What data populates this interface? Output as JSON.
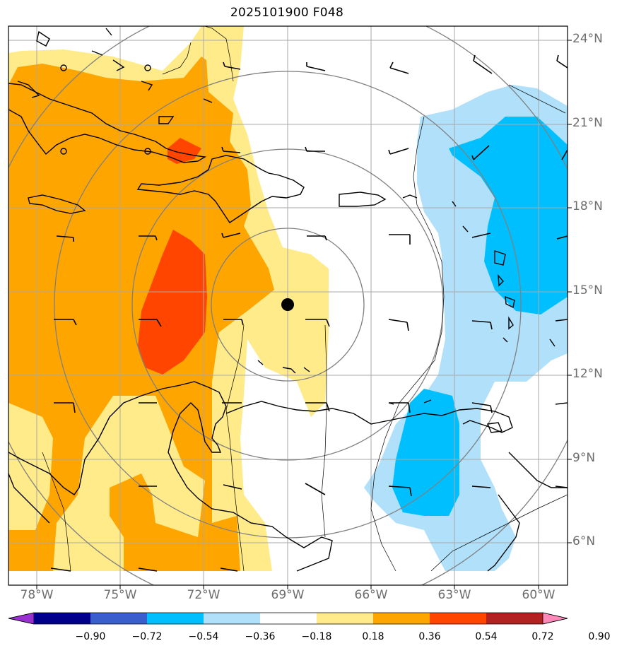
{
  "title": "2025101900 F048",
  "lat_labels": [
    "24°N",
    "21°N",
    "18°N",
    "15°N",
    "12°N",
    "9°N",
    "6°N"
  ],
  "lon_labels": [
    "78°W",
    "75°W",
    "72°W",
    "69°W",
    "66°W",
    "63°W",
    "60°W"
  ],
  "colorbar": {
    "ticks": [
      "−0.90",
      "−0.72",
      "−0.54",
      "−0.36",
      "−0.18",
      "0.18",
      "0.36",
      "0.54",
      "0.72",
      "0.90"
    ],
    "colors": [
      "#9b30d0",
      "#00008b",
      "#3a5fcd",
      "#00bfff",
      "#b0e0fa",
      "#ffffff",
      "#ffeb8a",
      "#ffa500",
      "#ff4500",
      "#b22222",
      "#ff88b8"
    ]
  },
  "center_marker": {
    "lat": 14.5,
    "lon": -69.0
  },
  "fill_colors": {
    "light_yellow": "#ffeb8a",
    "orange": "#ffa500",
    "red_orange": "#ff4500",
    "light_blue": "#b0e0fa",
    "deep_sky_blue": "#00bfff"
  }
}
